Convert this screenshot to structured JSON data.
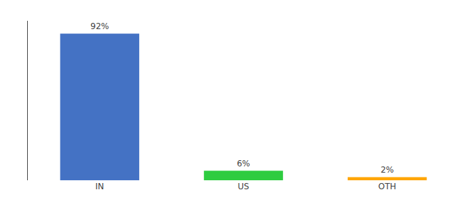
{
  "chart_data": {
    "type": "bar",
    "categories": [
      "IN",
      "US",
      "OTH"
    ],
    "values": [
      92,
      6,
      2
    ],
    "value_labels": [
      "92%",
      "6%",
      "2%"
    ],
    "colors": [
      "#4472C4",
      "#2ECC40",
      "#FFA500"
    ],
    "ylim": [
      0,
      100
    ],
    "data_labels": true,
    "tick_labels": "x",
    "grid": false
  }
}
